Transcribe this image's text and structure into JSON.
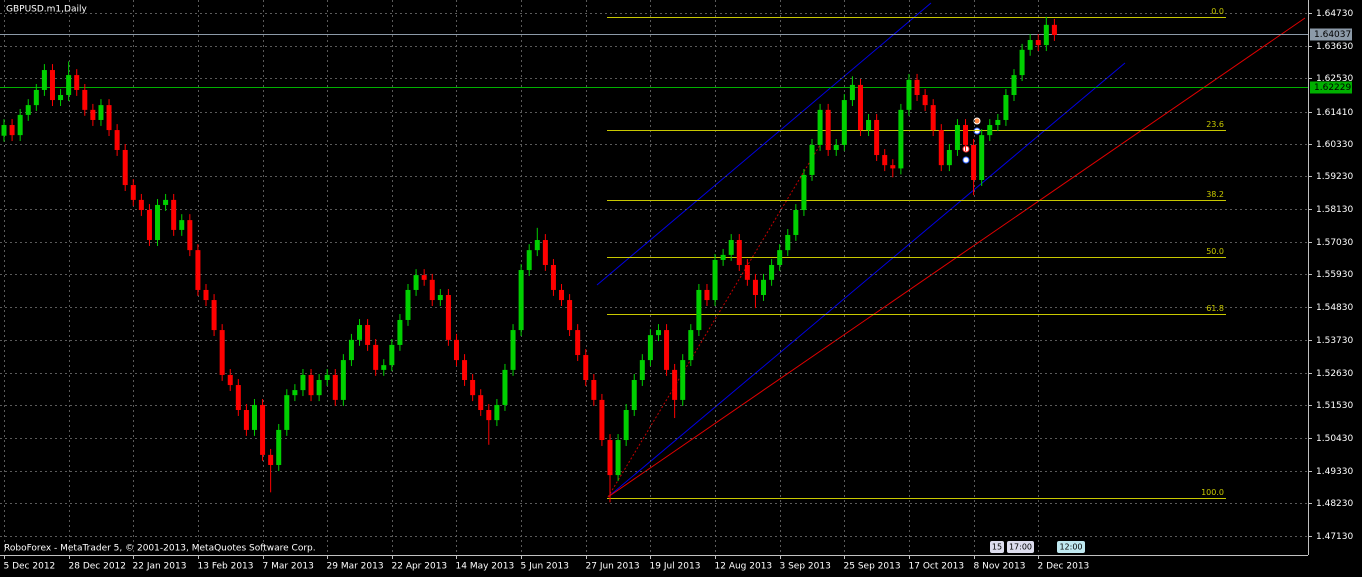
{
  "chart_data": {
    "type": "candlestick",
    "title": "GBPUSD.m1,Daily",
    "footer": "RoboForex - MetaTrader 5, © 2001-2013, MetaQuotes Software Corp.",
    "categories": [
      "5 Dec 2012",
      null,
      null,
      null,
      null,
      null,
      null,
      null,
      "28 Dec 2012",
      null,
      null,
      null,
      null,
      null,
      null,
      null,
      "22 Jan 2013",
      null,
      null,
      null,
      null,
      null,
      null,
      null,
      "13 Feb 2013",
      null,
      null,
      null,
      null,
      null,
      null,
      null,
      "7 Mar 2013",
      null,
      null,
      null,
      null,
      null,
      null,
      null,
      "29 Mar 2013",
      null,
      null,
      null,
      null,
      null,
      null,
      null,
      "22 Apr 2013",
      null,
      null,
      null,
      null,
      null,
      null,
      null,
      "14 May 2013",
      null,
      null,
      null,
      null,
      null,
      null,
      null,
      "5 Jun 2013",
      null,
      null,
      null,
      null,
      null,
      null,
      null,
      "27 Jun 2013",
      null,
      null,
      null,
      null,
      null,
      null,
      null,
      "19 Jul 2013",
      null,
      null,
      null,
      null,
      null,
      null,
      null,
      "12 Aug 2013",
      null,
      null,
      null,
      null,
      null,
      null,
      null,
      "3 Sep 2013",
      null,
      null,
      null,
      null,
      null,
      null,
      null,
      "25 Sep 2013",
      null,
      null,
      null,
      null,
      null,
      null,
      null,
      "17 Oct 2013",
      null,
      null,
      null,
      null,
      null,
      null,
      null,
      "8 Nov 2013",
      null,
      null,
      null,
      null,
      null,
      null,
      null,
      "2 Dec 2013",
      null,
      null
    ],
    "open": [
      1.606,
      1.6096,
      1.6062,
      1.613,
      1.6163,
      1.6214,
      1.6281,
      1.618,
      1.6197,
      1.6264,
      1.6214,
      1.6147,
      1.6113,
      1.6163,
      1.6079,
      1.6012,
      1.5894,
      1.5844,
      1.581,
      1.5709,
      1.5827,
      1.5844,
      1.5743,
      1.5776,
      1.5675,
      1.5541,
      1.5507,
      1.5406,
      1.5255,
      1.5221,
      1.5137,
      1.507,
      1.5154,
      1.4986,
      1.4952,
      1.507,
      1.5187,
      1.5204,
      1.5255,
      1.5187,
      1.5238,
      1.5255,
      1.5171,
      1.5305,
      1.5373,
      1.5423,
      1.5356,
      1.5272,
      1.5288,
      1.5356,
      1.544,
      1.5541,
      1.5591,
      1.5575,
      1.5507,
      1.5524,
      1.5373,
      1.5305,
      1.5238,
      1.5187,
      1.5137,
      1.5103,
      1.5154,
      1.5272,
      1.5406,
      1.5608,
      1.5675,
      1.5709,
      1.5625,
      1.5541,
      1.5507,
      1.5406,
      1.5322,
      1.5238,
      1.5171,
      1.5036,
      1.4918,
      1.5036,
      1.5137,
      1.5238,
      1.5305,
      1.5389,
      1.5406,
      1.5272,
      1.5171,
      1.5305,
      1.5406,
      1.5541,
      1.5507,
      1.5642,
      1.5659,
      1.5709,
      1.5625,
      1.5575,
      1.5524,
      1.5575,
      1.5625,
      1.5675,
      1.5726,
      1.581,
      1.5928,
      1.6029,
      1.6147,
      1.6012,
      1.6029,
      1.618,
      1.6231,
      1.6079,
      1.6113,
      1.5995,
      1.5961,
      1.595,
      1.6147,
      1.6248,
      1.6197,
      1.6163,
      1.6079,
      1.5961,
      1.6012,
      1.6096,
      1.6029,
      1.5911,
      1.6062,
      1.6096,
      1.6113,
      1.6197,
      1.6264,
      1.6349,
      1.6382,
      1.6365,
      1.6433
    ],
    "high": [
      1.6116,
      1.6116,
      1.615,
      1.6183,
      1.6234,
      1.6301,
      1.6301,
      1.6217,
      1.631,
      1.6284,
      1.6234,
      1.6167,
      1.6183,
      1.6183,
      1.6099,
      1.6032,
      1.5914,
      1.5864,
      1.583,
      1.5847,
      1.5864,
      1.5864,
      1.5796,
      1.5796,
      1.5695,
      1.5561,
      1.5527,
      1.5426,
      1.5275,
      1.5241,
      1.5157,
      1.5174,
      1.5174,
      1.5006,
      1.509,
      1.5207,
      1.5224,
      1.5275,
      1.5275,
      1.5258,
      1.5275,
      1.5275,
      1.5325,
      1.5393,
      1.5443,
      1.5443,
      1.5376,
      1.5308,
      1.5376,
      1.546,
      1.5561,
      1.5611,
      1.5611,
      1.5595,
      1.5544,
      1.5544,
      1.5393,
      1.5325,
      1.5258,
      1.5207,
      1.5157,
      1.5174,
      1.5292,
      1.5426,
      1.5628,
      1.5695,
      1.575,
      1.5729,
      1.5645,
      1.5561,
      1.5527,
      1.5426,
      1.5342,
      1.5258,
      1.5191,
      1.5056,
      1.5056,
      1.5157,
      1.5258,
      1.5325,
      1.5409,
      1.5426,
      1.5426,
      1.5292,
      1.5325,
      1.5426,
      1.5561,
      1.5561,
      1.5662,
      1.5679,
      1.5729,
      1.5729,
      1.5645,
      1.5595,
      1.5595,
      1.5645,
      1.5695,
      1.5746,
      1.583,
      1.5948,
      1.6049,
      1.6167,
      1.6167,
      1.6049,
      1.62,
      1.626,
      1.6251,
      1.6133,
      1.6133,
      1.6015,
      1.5981,
      1.6167,
      1.6268,
      1.6268,
      1.6217,
      1.6183,
      1.6099,
      1.6032,
      1.6116,
      1.6116,
      1.6049,
      1.6082,
      1.6116,
      1.6133,
      1.6217,
      1.6284,
      1.6369,
      1.6402,
      1.6402,
      1.646,
      1.6453
    ],
    "low": [
      1.604,
      1.6042,
      1.6042,
      1.611,
      1.6143,
      1.6194,
      1.616,
      1.616,
      1.6177,
      1.6194,
      1.6127,
      1.6093,
      1.6093,
      1.6059,
      1.5992,
      1.5874,
      1.5824,
      1.579,
      1.5689,
      1.5689,
      1.5807,
      1.5723,
      1.5723,
      1.5655,
      1.5521,
      1.5487,
      1.5386,
      1.5235,
      1.5201,
      1.5117,
      1.505,
      1.505,
      1.4966,
      1.486,
      1.4932,
      1.505,
      1.5167,
      1.5184,
      1.5167,
      1.5167,
      1.5218,
      1.5151,
      1.5151,
      1.5285,
      1.5353,
      1.5336,
      1.5252,
      1.5252,
      1.5268,
      1.5336,
      1.542,
      1.5521,
      1.5555,
      1.5487,
      1.5487,
      1.5353,
      1.5285,
      1.5218,
      1.5167,
      1.5117,
      1.502,
      1.5083,
      1.5134,
      1.5252,
      1.5386,
      1.5588,
      1.5655,
      1.5605,
      1.5521,
      1.5487,
      1.5386,
      1.5302,
      1.5218,
      1.5151,
      1.5016,
      1.4826,
      1.4898,
      1.5016,
      1.5117,
      1.5218,
      1.5285,
      1.5369,
      1.5252,
      1.511,
      1.5151,
      1.5285,
      1.5386,
      1.5487,
      1.5487,
      1.5622,
      1.5639,
      1.5605,
      1.5555,
      1.548,
      1.5504,
      1.5555,
      1.5605,
      1.5655,
      1.5706,
      1.579,
      1.5908,
      1.6009,
      1.5992,
      1.5992,
      1.6009,
      1.616,
      1.6059,
      1.6059,
      1.5975,
      1.5941,
      1.592,
      1.593,
      1.6127,
      1.6177,
      1.6143,
      1.6059,
      1.5941,
      1.5941,
      1.5992,
      1.6009,
      1.586,
      1.5891,
      1.6042,
      1.6076,
      1.6093,
      1.6177,
      1.6244,
      1.6329,
      1.6345,
      1.6345,
      1.6379
    ],
    "close": [
      1.6096,
      1.6062,
      1.613,
      1.6163,
      1.6214,
      1.6281,
      1.618,
      1.6197,
      1.6264,
      1.6214,
      1.6147,
      1.6113,
      1.6163,
      1.6079,
      1.6012,
      1.5894,
      1.5844,
      1.581,
      1.5709,
      1.5827,
      1.5844,
      1.5743,
      1.5776,
      1.5675,
      1.5541,
      1.5507,
      1.5406,
      1.5255,
      1.5221,
      1.5137,
      1.507,
      1.5154,
      1.4986,
      1.4952,
      1.507,
      1.5187,
      1.5204,
      1.5255,
      1.5187,
      1.5238,
      1.5255,
      1.5171,
      1.5305,
      1.5373,
      1.5423,
      1.5356,
      1.5272,
      1.5288,
      1.5356,
      1.544,
      1.5541,
      1.5591,
      1.5575,
      1.5507,
      1.5524,
      1.5373,
      1.5305,
      1.5238,
      1.5187,
      1.5137,
      1.5103,
      1.5154,
      1.5272,
      1.5406,
      1.5608,
      1.5675,
      1.5709,
      1.5625,
      1.5541,
      1.5507,
      1.5406,
      1.5322,
      1.5238,
      1.5171,
      1.5036,
      1.4918,
      1.5036,
      1.5137,
      1.5238,
      1.5305,
      1.5389,
      1.5406,
      1.5272,
      1.5171,
      1.5305,
      1.5406,
      1.5541,
      1.5507,
      1.5642,
      1.5659,
      1.5709,
      1.5625,
      1.5575,
      1.5524,
      1.5575,
      1.5625,
      1.5675,
      1.5726,
      1.581,
      1.5928,
      1.6029,
      1.6147,
      1.6012,
      1.6029,
      1.618,
      1.6231,
      1.6079,
      1.6113,
      1.5995,
      1.5961,
      1.595,
      1.6147,
      1.6248,
      1.6197,
      1.6163,
      1.6079,
      1.5961,
      1.6012,
      1.6096,
      1.6029,
      1.5911,
      1.6062,
      1.6096,
      1.6113,
      1.6197,
      1.6264,
      1.6349,
      1.6382,
      1.6365,
      1.6433,
      1.6399
    ],
    "up_color": "#00d000",
    "down_color": "#ff0000",
    "ylim": [
      1.46491,
      1.65167
    ],
    "yticks": [
      {
        "value": 1.6473,
        "label": "1.64730"
      },
      {
        "value": 1.6363,
        "label": "1.63630"
      },
      {
        "value": 1.6253,
        "label": "1.62530"
      },
      {
        "value": 1.6141,
        "label": "1.61410"
      },
      {
        "value": 1.6033,
        "label": "1.60330"
      },
      {
        "value": 1.5923,
        "label": "1.59230"
      },
      {
        "value": 1.5813,
        "label": "1.58130"
      },
      {
        "value": 1.5703,
        "label": "1.57030"
      },
      {
        "value": 1.5593,
        "label": "1.55930"
      },
      {
        "value": 1.5483,
        "label": "1.54830"
      },
      {
        "value": 1.5373,
        "label": "1.53730"
      },
      {
        "value": 1.5263,
        "label": "1.52630"
      },
      {
        "value": 1.5153,
        "label": "1.51530"
      },
      {
        "value": 1.5043,
        "label": "1.50430"
      },
      {
        "value": 1.4933,
        "label": "1.49330"
      },
      {
        "value": 1.4823,
        "label": "1.48230"
      },
      {
        "value": 1.4713,
        "label": "1.47130"
      }
    ],
    "grid": true,
    "price_lines": [
      {
        "value": 1.64037,
        "label": "1.64037",
        "color": "#8c9aa8"
      },
      {
        "value": 1.62229,
        "label": "1.62229",
        "color": "#00b000"
      }
    ],
    "fibonacci": {
      "color": "#c8c800",
      "levels": [
        {
          "label": "0.0",
          "value": 1.646
        },
        {
          "label": "23.6",
          "value": 1.6079
        },
        {
          "label": "38.2",
          "value": 1.5844
        },
        {
          "label": "50.0",
          "value": 1.5652
        },
        {
          "label": "61.8",
          "value": 1.546
        },
        {
          "label": "100.0",
          "value": 1.4841
        }
      ]
    },
    "time_markers": [
      "15",
      "17:00",
      "12:00"
    ]
  }
}
